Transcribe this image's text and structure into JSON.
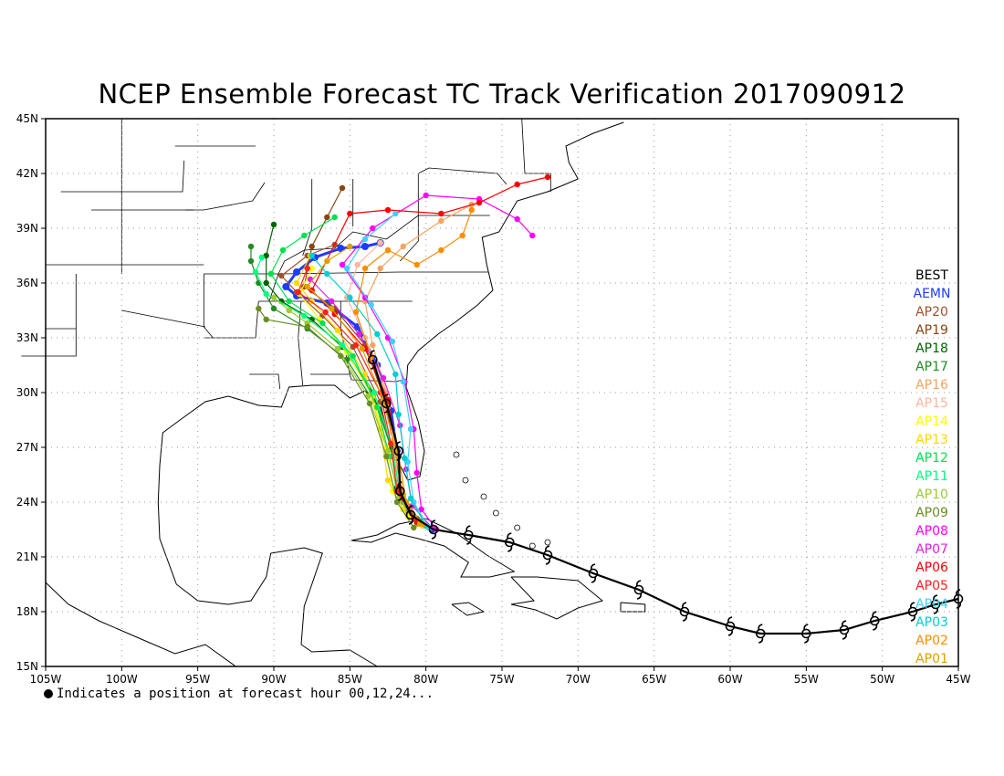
{
  "title": "NCEP Ensemble Forecast TC Track Verification 2017090912",
  "footnote": "Indicates a position at forecast hour 00,12,24...",
  "legend": [
    {
      "label": "BEST",
      "color": "#000000"
    },
    {
      "label": "AEMN",
      "color": "#1e3cff"
    },
    {
      "label": "AP20",
      "color": "#a0522d"
    },
    {
      "label": "AP19",
      "color": "#8b4513"
    },
    {
      "label": "AP18",
      "color": "#006400"
    },
    {
      "label": "AP17",
      "color": "#228b22"
    },
    {
      "label": "AP16",
      "color": "#f4a460"
    },
    {
      "label": "AP15",
      "color": "#ffb6a0"
    },
    {
      "label": "AP14",
      "color": "#ffff00"
    },
    {
      "label": "AP13",
      "color": "#ffd700"
    },
    {
      "label": "AP12",
      "color": "#00e050"
    },
    {
      "label": "AP11",
      "color": "#00ff7f"
    },
    {
      "label": "AP10",
      "color": "#9acd32"
    },
    {
      "label": "AP09",
      "color": "#6b8e23"
    },
    {
      "label": "AP08",
      "color": "#ff00ff"
    },
    {
      "label": "AP07",
      "color": "#e020e0"
    },
    {
      "label": "AP06",
      "color": "#ff0000"
    },
    {
      "label": "AP05",
      "color": "#ff2020"
    },
    {
      "label": "AP04",
      "color": "#40d0ff"
    },
    {
      "label": "AP03",
      "color": "#00ced1"
    },
    {
      "label": "AP02",
      "color": "#ff8c00"
    },
    {
      "label": "AP01",
      "color": "#e0a000"
    }
  ],
  "map": {
    "lon_range": [
      -105,
      -45
    ],
    "lat_range": [
      15,
      45
    ],
    "lon_ticks": [
      "105W",
      "100W",
      "95W",
      "90W",
      "85W",
      "80W",
      "75W",
      "70W",
      "65W",
      "60W",
      "55W",
      "50W",
      "45W"
    ],
    "lat_ticks": [
      "15N",
      "18N",
      "21N",
      "24N",
      "27N",
      "30N",
      "33N",
      "36N",
      "39N",
      "42N",
      "45N"
    ]
  },
  "chart_data": {
    "type": "map",
    "title": "NCEP Ensemble Forecast TC Track Verification 2017090912",
    "best_track": {
      "name": "BEST",
      "color": "#000000",
      "points": [
        [
          -45,
          18.7
        ],
        [
          -46.5,
          18.4
        ],
        [
          -48,
          18.0
        ],
        [
          -50.5,
          17.5
        ],
        [
          -52.5,
          17.0
        ],
        [
          -55,
          16.8
        ],
        [
          -58,
          16.8
        ],
        [
          -60,
          17.2
        ],
        [
          -63,
          18.0
        ],
        [
          -66,
          19.2
        ],
        [
          -69,
          20.1
        ],
        [
          -72,
          21.1
        ],
        [
          -74.5,
          21.8
        ],
        [
          -77.2,
          22.2
        ],
        [
          -79.5,
          22.5
        ],
        [
          -81,
          23.3
        ],
        [
          -81.7,
          24.6
        ],
        [
          -81.8,
          26.8
        ],
        [
          -82.6,
          29.4
        ],
        [
          -83.5,
          31.8
        ]
      ]
    },
    "ensemble_tracks": [
      {
        "name": "AEMN",
        "color": "#1e3cff",
        "points": [
          [
            -79.6,
            22.5
          ],
          [
            -81.2,
            23.4
          ],
          [
            -81.8,
            24.8
          ],
          [
            -81.9,
            26.8
          ],
          [
            -82.3,
            29.0
          ],
          [
            -83.2,
            31.5
          ],
          [
            -84.5,
            33.6
          ],
          [
            -86.5,
            34.9
          ],
          [
            -88.5,
            35.3
          ],
          [
            -89.2,
            35.8
          ],
          [
            -88.5,
            36.6
          ],
          [
            -87.3,
            37.4
          ],
          [
            -85.6,
            37.9
          ],
          [
            -84,
            38.0
          ],
          [
            -83,
            38.2
          ]
        ]
      },
      {
        "name": "AP20",
        "color": "#a0522d",
        "points": [
          [
            -80.3,
            22.8
          ],
          [
            -81.5,
            24.0
          ],
          [
            -82.2,
            26.5
          ],
          [
            -83.0,
            29.5
          ],
          [
            -84.8,
            32.5
          ],
          [
            -86.8,
            34.2
          ],
          [
            -88.5,
            35.5
          ],
          [
            -89.5,
            36.4
          ],
          [
            -87.8,
            37.5
          ],
          [
            -86,
            38.1
          ]
        ]
      },
      {
        "name": "AP19",
        "color": "#8b4513",
        "points": [
          [
            -80.5,
            23.0
          ],
          [
            -81.6,
            24.6
          ],
          [
            -82.0,
            27.0
          ],
          [
            -82.8,
            29.8
          ],
          [
            -84.0,
            32.6
          ],
          [
            -86.0,
            34.6
          ],
          [
            -88.0,
            35.8
          ],
          [
            -87.5,
            38.0
          ],
          [
            -86.5,
            39.6
          ],
          [
            -85.5,
            41.2
          ]
        ]
      },
      {
        "name": "AP18",
        "color": "#006400",
        "points": [
          [
            -80.6,
            23.1
          ],
          [
            -81.9,
            24.8
          ],
          [
            -82.3,
            27.0
          ],
          [
            -83.5,
            30.0
          ],
          [
            -85.5,
            32.5
          ],
          [
            -87.5,
            34.0
          ],
          [
            -89.5,
            35.0
          ],
          [
            -90.5,
            36.0
          ],
          [
            -90.5,
            37.5
          ],
          [
            -90,
            39.2
          ]
        ]
      },
      {
        "name": "AP17",
        "color": "#228b22",
        "points": [
          [
            -80.4,
            22.9
          ],
          [
            -81.6,
            24.4
          ],
          [
            -82.0,
            26.4
          ],
          [
            -83.2,
            29.2
          ],
          [
            -85.2,
            31.8
          ],
          [
            -87.8,
            33.5
          ],
          [
            -90.0,
            34.6
          ],
          [
            -91.0,
            36.0
          ],
          [
            -91.5,
            37.2
          ],
          [
            -91.5,
            38.0
          ]
        ]
      },
      {
        "name": "AP16",
        "color": "#f4a460",
        "points": [
          [
            -80.8,
            23.2
          ],
          [
            -81.8,
            25.0
          ],
          [
            -82.1,
            27.4
          ],
          [
            -82.6,
            30.0
          ],
          [
            -83.5,
            32.6
          ],
          [
            -84.0,
            35.0
          ],
          [
            -83.0,
            36.8
          ],
          [
            -81.5,
            38.0
          ],
          [
            -79,
            39.4
          ],
          [
            -77,
            40.3
          ]
        ]
      },
      {
        "name": "AP15",
        "color": "#ffb6a0",
        "points": [
          [
            -80.9,
            23.3
          ],
          [
            -81.9,
            25.4
          ],
          [
            -82.2,
            27.8
          ],
          [
            -82.8,
            30.4
          ],
          [
            -84.0,
            33.0
          ],
          [
            -85.2,
            35.2
          ],
          [
            -84.5,
            37.0
          ],
          [
            -83.0,
            38.2
          ]
        ]
      },
      {
        "name": "AP14",
        "color": "#ffff00",
        "points": [
          [
            -81.2,
            23.2
          ],
          [
            -82.2,
            24.6
          ],
          [
            -82.6,
            27.0
          ],
          [
            -83.5,
            29.8
          ],
          [
            -85.2,
            32.2
          ],
          [
            -87.0,
            34.0
          ],
          [
            -88.3,
            35.4
          ],
          [
            -87.5,
            36.8
          ]
        ]
      },
      {
        "name": "AP13",
        "color": "#ffd700",
        "points": [
          [
            -80.2,
            22.7
          ],
          [
            -81.5,
            23.6
          ],
          [
            -82.5,
            25.2
          ],
          [
            -83.0,
            28.0
          ],
          [
            -84.0,
            31.0
          ],
          [
            -85.8,
            33.4
          ],
          [
            -87.5,
            35.0
          ],
          [
            -88.5,
            36.0
          ],
          [
            -87.6,
            37.5
          ]
        ]
      },
      {
        "name": "AP12",
        "color": "#00e050",
        "points": [
          [
            -80.4,
            22.9
          ],
          [
            -81.8,
            24.2
          ],
          [
            -82.4,
            26.5
          ],
          [
            -83.2,
            29.2
          ],
          [
            -84.8,
            32.0
          ],
          [
            -86.8,
            33.8
          ],
          [
            -89.0,
            35.0
          ],
          [
            -90.2,
            36.5
          ],
          [
            -89.4,
            37.8
          ],
          [
            -88.0,
            38.6
          ],
          [
            -86.0,
            39.6
          ]
        ]
      },
      {
        "name": "AP11",
        "color": "#00ff7f",
        "points": [
          [
            -80.6,
            23.0
          ],
          [
            -81.7,
            24.5
          ],
          [
            -82.3,
            27.2
          ],
          [
            -83.4,
            30.0
          ],
          [
            -85.5,
            32.6
          ],
          [
            -88.0,
            34.2
          ],
          [
            -90.5,
            35.4
          ],
          [
            -91.2,
            36.6
          ],
          [
            -90.8,
            37.4
          ]
        ]
      },
      {
        "name": "AP10",
        "color": "#9acd32",
        "points": [
          [
            -80.6,
            22.8
          ],
          [
            -81.8,
            24.2
          ],
          [
            -82.5,
            26.8
          ],
          [
            -83.8,
            29.8
          ],
          [
            -85.8,
            32.4
          ],
          [
            -87.8,
            33.8
          ],
          [
            -89.0,
            34.5
          ],
          [
            -90.0,
            35.2
          ]
        ]
      },
      {
        "name": "AP09",
        "color": "#6b8e23",
        "points": [
          [
            -80.8,
            22.6
          ],
          [
            -81.9,
            24.0
          ],
          [
            -82.6,
            26.5
          ],
          [
            -83.7,
            29.4
          ],
          [
            -85.6,
            32.0
          ],
          [
            -87.8,
            33.6
          ],
          [
            -90.5,
            34.0
          ],
          [
            -91.0,
            34.6
          ]
        ]
      },
      {
        "name": "AP08",
        "color": "#ff00ff",
        "points": [
          [
            -79.3,
            22.5
          ],
          [
            -80.3,
            23.6
          ],
          [
            -80.6,
            25.6
          ],
          [
            -80.8,
            28.0
          ],
          [
            -81.4,
            30.6
          ],
          [
            -82.5,
            33.0
          ],
          [
            -84.0,
            35.2
          ],
          [
            -85.5,
            37.0
          ],
          [
            -83.5,
            39.0
          ],
          [
            -80.0,
            40.8
          ],
          [
            -76.5,
            40.6
          ],
          [
            -74,
            39.5
          ],
          [
            -73,
            38.6
          ]
        ]
      },
      {
        "name": "AP07",
        "color": "#e020e0",
        "points": [
          [
            -79.6,
            22.6
          ],
          [
            -80.9,
            23.8
          ],
          [
            -81.3,
            25.8
          ],
          [
            -81.7,
            28.2
          ],
          [
            -82.8,
            30.8
          ],
          [
            -84.4,
            33.2
          ],
          [
            -86.2,
            35.0
          ],
          [
            -87.6,
            36.2
          ]
        ]
      },
      {
        "name": "AP06",
        "color": "#ff0000",
        "points": [
          [
            -80.6,
            22.9
          ],
          [
            -81.6,
            24.4
          ],
          [
            -81.9,
            26.8
          ],
          [
            -82.5,
            29.6
          ],
          [
            -84.0,
            32.4
          ],
          [
            -86.0,
            34.3
          ],
          [
            -87.5,
            35.6
          ],
          [
            -85.0,
            39.8
          ],
          [
            -82.5,
            40.0
          ],
          [
            -79.0,
            39.8
          ],
          [
            -76.5,
            40.4
          ],
          [
            -74.0,
            41.4
          ],
          [
            -72.0,
            41.8
          ]
        ]
      },
      {
        "name": "AP05",
        "color": "#ff2020",
        "points": [
          [
            -80.8,
            23.1
          ],
          [
            -81.9,
            24.6
          ],
          [
            -82.3,
            27.2
          ],
          [
            -83.0,
            30.0
          ],
          [
            -84.6,
            32.6
          ],
          [
            -86.6,
            34.4
          ],
          [
            -88.4,
            35.5
          ],
          [
            -87.8,
            36.8
          ]
        ]
      },
      {
        "name": "AP04",
        "color": "#40d0ff",
        "points": [
          [
            -79.8,
            22.6
          ],
          [
            -80.8,
            24.0
          ],
          [
            -81.2,
            26.2
          ],
          [
            -81.0,
            28.0
          ],
          [
            -81.5,
            30.6
          ],
          [
            -82.2,
            32.8
          ],
          [
            -83.6,
            34.8
          ],
          [
            -85.2,
            36.8
          ],
          [
            -84.0,
            38.4
          ],
          [
            -82.0,
            39.8
          ]
        ]
      },
      {
        "name": "AP03",
        "color": "#00ced1",
        "points": [
          [
            -80.0,
            22.7
          ],
          [
            -81.0,
            24.2
          ],
          [
            -81.4,
            26.4
          ],
          [
            -81.8,
            28.8
          ],
          [
            -82.0,
            31.0
          ],
          [
            -83.2,
            33.2
          ],
          [
            -85.0,
            35.2
          ],
          [
            -86.5,
            36.5
          ],
          [
            -87.5,
            37.5
          ]
        ]
      },
      {
        "name": "AP02",
        "color": "#ff8c00",
        "points": [
          [
            -80.2,
            22.8
          ],
          [
            -81.3,
            24.0
          ],
          [
            -81.8,
            26.5
          ],
          [
            -82.5,
            29.2
          ],
          [
            -83.6,
            32.0
          ],
          [
            -84.6,
            34.4
          ],
          [
            -84.0,
            36.8
          ],
          [
            -82.5,
            37.8
          ],
          [
            -80.6,
            37.0
          ],
          [
            -79.0,
            37.8
          ],
          [
            -77.6,
            38.6
          ],
          [
            -77.0,
            40.0
          ]
        ]
      },
      {
        "name": "AP01",
        "color": "#e0a000",
        "points": [
          [
            -80.4,
            22.8
          ],
          [
            -81.5,
            24.4
          ],
          [
            -82.0,
            26.8
          ],
          [
            -82.8,
            29.6
          ],
          [
            -84.2,
            32.4
          ],
          [
            -86.2,
            34.6
          ],
          [
            -87.8,
            35.8
          ],
          [
            -86.5,
            37.2
          ],
          [
            -85.0,
            38.0
          ]
        ]
      }
    ]
  }
}
